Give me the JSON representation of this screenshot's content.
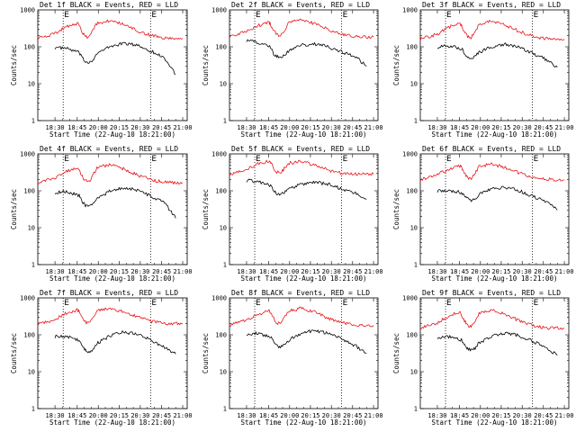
{
  "chart_data": [
    {
      "type": "line",
      "title": "Det 1f BLACK = Events, RED = LLD",
      "xlabel": "Start Time (22-Aug-10 18:21:00)",
      "ylabel": "Counts/sec",
      "ylim": [
        1,
        1000
      ],
      "yscale": "log",
      "xlim": [
        "18:21",
        "21:00"
      ],
      "xticks": [
        "18:30",
        "18:45",
        "20:00",
        "20:15",
        "20:30",
        "20:45",
        "21:00"
      ],
      "yticks": [
        "1",
        "10",
        "100",
        "1000"
      ],
      "markers": [
        "18:34",
        "20:38"
      ],
      "marker_labels": [
        "E",
        "E"
      ],
      "series": [
        {
          "color": "#000000",
          "x": [
            "18:30",
            "18:37",
            "18:52",
            "19:03",
            "19:14",
            "19:27",
            "19:41",
            "19:55",
            "20:08",
            "20:18",
            "20:28",
            "20:38",
            "20:47",
            "20:55"
          ],
          "values": [
            95,
            92,
            70,
            48,
            40,
            38,
            45,
            65,
            100,
            125,
            110,
            75,
            50,
            18
          ]
        },
        {
          "color": "#e8141a",
          "x": [
            "18:21",
            "18:30",
            "18:37",
            "18:45",
            "18:52",
            "19:03",
            "19:14",
            "19:27",
            "19:41",
            "19:55",
            "20:08",
            "20:18",
            "20:28",
            "20:38",
            "20:47",
            "20:55",
            "21:00"
          ],
          "values": [
            170,
            230,
            340,
            430,
            380,
            250,
            190,
            180,
            270,
            430,
            520,
            400,
            270,
            200,
            175,
            170,
            170
          ]
        }
      ]
    },
    {
      "type": "line",
      "title": "Det 2f BLACK = Events, RED = LLD",
      "xlabel": "Start Time (22-Aug-10 18:21:00)",
      "ylabel": "Counts/sec",
      "ylim": [
        1,
        1000
      ],
      "yscale": "log",
      "xlim": [
        "18:21",
        "21:00"
      ],
      "xticks": [
        "18:30",
        "18:45",
        "20:00",
        "20:15",
        "20:30",
        "20:45",
        "21:00"
      ],
      "yticks": [
        "1",
        "10",
        "100",
        "1000"
      ],
      "markers": [
        "18:34",
        "20:38"
      ],
      "marker_labels": [
        "E",
        "E"
      ],
      "series": [
        {
          "color": "#000000",
          "x": [
            "18:30",
            "18:37",
            "18:52",
            "19:03",
            "19:14",
            "19:27",
            "19:41",
            "19:55",
            "20:08",
            "20:18",
            "20:28",
            "20:38",
            "20:47",
            "20:55"
          ],
          "values": [
            150,
            135,
            95,
            65,
            55,
            50,
            58,
            75,
            110,
            120,
            100,
            70,
            55,
            30
          ]
        },
        {
          "color": "#e8141a",
          "x": [
            "18:21",
            "18:30",
            "18:37",
            "18:45",
            "18:52",
            "19:03",
            "19:14",
            "19:27",
            "19:41",
            "19:55",
            "20:08",
            "20:18",
            "20:28",
            "20:38",
            "20:47",
            "20:55",
            "21:00"
          ],
          "values": [
            190,
            260,
            360,
            470,
            400,
            280,
            210,
            195,
            280,
            450,
            540,
            420,
            290,
            215,
            190,
            185,
            185
          ]
        }
      ]
    },
    {
      "type": "line",
      "title": "Det 3f BLACK = Events, RED = LLD",
      "xlabel": "Start Time (22-Aug-10 18:21:00)",
      "ylabel": "Counts/sec",
      "ylim": [
        1,
        1000
      ],
      "yscale": "log",
      "xlim": [
        "18:21",
        "21:00"
      ],
      "xticks": [
        "18:30",
        "18:45",
        "20:00",
        "20:15",
        "20:30",
        "20:45",
        "21:00"
      ],
      "yticks": [
        "1",
        "10",
        "100",
        "1000"
      ],
      "markers": [
        "18:34",
        "20:38"
      ],
      "marker_labels": [
        "E",
        "E"
      ],
      "series": [
        {
          "color": "#000000",
          "x": [
            "18:30",
            "18:37",
            "18:52",
            "19:03",
            "19:14",
            "19:27",
            "19:41",
            "19:55",
            "20:08",
            "20:18",
            "20:28",
            "20:38",
            "20:47",
            "20:55"
          ],
          "values": [
            100,
            105,
            90,
            68,
            55,
            50,
            55,
            70,
            100,
            115,
            95,
            65,
            45,
            28
          ]
        },
        {
          "color": "#e8141a",
          "x": [
            "18:21",
            "18:30",
            "18:37",
            "18:45",
            "18:52",
            "19:03",
            "19:14",
            "19:27",
            "19:41",
            "19:55",
            "20:08",
            "20:18",
            "20:28",
            "20:38",
            "20:47",
            "20:55",
            "21:00"
          ],
          "values": [
            160,
            220,
            330,
            440,
            380,
            250,
            185,
            175,
            260,
            420,
            500,
            390,
            260,
            190,
            165,
            160,
            160
          ]
        }
      ]
    },
    {
      "type": "line",
      "title": "Det 4f BLACK = Events, RED = LLD",
      "xlabel": "Start Time (22-Aug-10 18:21:00)",
      "ylabel": "Counts/sec",
      "ylim": [
        1,
        1000
      ],
      "yscale": "log",
      "xlim": [
        "18:21",
        "21:00"
      ],
      "xticks": [
        "18:30",
        "18:45",
        "20:00",
        "20:15",
        "20:30",
        "20:45",
        "21:00"
      ],
      "yticks": [
        "1",
        "10",
        "100",
        "1000"
      ],
      "markers": [
        "18:34",
        "20:38"
      ],
      "marker_labels": [
        "E",
        "E"
      ],
      "series": [
        {
          "color": "#000000",
          "x": [
            "18:30",
            "18:37",
            "18:52",
            "19:03",
            "19:14",
            "19:27",
            "19:41",
            "19:55",
            "20:08",
            "20:18",
            "20:28",
            "20:38",
            "20:47",
            "20:55"
          ],
          "values": [
            90,
            95,
            75,
            50,
            40,
            36,
            42,
            60,
            95,
            120,
            105,
            70,
            48,
            18
          ]
        },
        {
          "color": "#e8141a",
          "x": [
            "18:21",
            "18:30",
            "18:37",
            "18:45",
            "18:52",
            "19:03",
            "19:14",
            "19:27",
            "19:41",
            "19:55",
            "20:08",
            "20:18",
            "20:28",
            "20:38",
            "20:47",
            "20:55",
            "21:00"
          ],
          "values": [
            165,
            225,
            330,
            420,
            370,
            245,
            185,
            175,
            265,
            420,
            510,
            395,
            265,
            195,
            170,
            165,
            165
          ]
        }
      ]
    },
    {
      "type": "line",
      "title": "Det 5f BLACK = Events, RED = LLD",
      "xlabel": "Start Time (22-Aug-10 18:21:00)",
      "ylabel": "Counts/sec",
      "ylim": [
        1,
        1000
      ],
      "yscale": "log",
      "xlim": [
        "18:21",
        "21:00"
      ],
      "xticks": [
        "18:30",
        "18:45",
        "20:00",
        "20:15",
        "20:30",
        "20:45",
        "21:00"
      ],
      "yticks": [
        "1",
        "10",
        "100",
        "1000"
      ],
      "markers": [
        "18:34",
        "20:38"
      ],
      "marker_labels": [
        "E",
        "E"
      ],
      "series": [
        {
          "color": "#000000",
          "x": [
            "18:30",
            "18:37",
            "18:52",
            "19:03",
            "19:14",
            "19:27",
            "19:41",
            "19:55",
            "20:08",
            "20:18",
            "20:28",
            "20:38",
            "20:47",
            "20:55"
          ],
          "values": [
            190,
            180,
            140,
            100,
            85,
            80,
            90,
            110,
            150,
            170,
            150,
            110,
            85,
            60
          ]
        },
        {
          "color": "#e8141a",
          "x": [
            "18:21",
            "18:30",
            "18:37",
            "18:45",
            "18:52",
            "19:03",
            "19:14",
            "19:27",
            "19:41",
            "19:55",
            "20:08",
            "20:18",
            "20:28",
            "20:38",
            "20:47",
            "20:55",
            "21:00"
          ],
          "values": [
            280,
            380,
            520,
            650,
            580,
            420,
            320,
            300,
            400,
            560,
            620,
            500,
            360,
            300,
            285,
            280,
            280
          ]
        }
      ]
    },
    {
      "type": "line",
      "title": "Det 6f BLACK = Events, RED = LLD",
      "xlabel": "Start Time (22-Aug-10 18:21:00)",
      "ylabel": "Counts/sec",
      "ylim": [
        1,
        1000
      ],
      "yscale": "log",
      "xlim": [
        "18:21",
        "21:00"
      ],
      "xticks": [
        "18:30",
        "18:45",
        "20:00",
        "20:15",
        "20:30",
        "20:45",
        "21:00"
      ],
      "yticks": [
        "1",
        "10",
        "100",
        "1000"
      ],
      "markers": [
        "18:34",
        "20:38"
      ],
      "marker_labels": [
        "E",
        "E"
      ],
      "series": [
        {
          "color": "#000000",
          "x": [
            "18:30",
            "18:37",
            "18:52",
            "19:03",
            "19:14",
            "19:27",
            "19:41",
            "19:55",
            "20:08",
            "20:18",
            "20:28",
            "20:38",
            "20:47",
            "20:55"
          ],
          "values": [
            100,
            105,
            90,
            72,
            60,
            55,
            62,
            80,
            110,
            125,
            100,
            70,
            50,
            30
          ]
        },
        {
          "color": "#e8141a",
          "x": [
            "18:21",
            "18:30",
            "18:37",
            "18:45",
            "18:52",
            "19:03",
            "19:14",
            "19:27",
            "19:41",
            "19:55",
            "20:08",
            "20:18",
            "20:28",
            "20:38",
            "20:47",
            "20:55",
            "21:00"
          ],
          "values": [
            200,
            270,
            380,
            480,
            430,
            300,
            230,
            215,
            300,
            450,
            530,
            420,
            300,
            230,
            205,
            200,
            200
          ]
        }
      ]
    },
    {
      "type": "line",
      "title": "Det 7f BLACK = Events, RED = LLD",
      "xlabel": "Start Time (22-Aug-10 18:21:00)",
      "ylabel": "Counts/sec",
      "ylim": [
        1,
        1000
      ],
      "yscale": "log",
      "xlim": [
        "18:21",
        "21:00"
      ],
      "xticks": [
        "18:30",
        "18:45",
        "20:00",
        "20:15",
        "20:30",
        "20:45",
        "21:00"
      ],
      "yticks": [
        "1",
        "10",
        "100",
        "1000"
      ],
      "markers": [
        "18:34",
        "20:38"
      ],
      "marker_labels": [
        "E",
        "E"
      ],
      "series": [
        {
          "color": "#000000",
          "x": [
            "18:30",
            "18:37",
            "18:52",
            "19:03",
            "19:14",
            "19:27",
            "19:41",
            "19:55",
            "20:08",
            "20:18",
            "20:28",
            "20:38",
            "20:47",
            "20:55"
          ],
          "values": [
            90,
            92,
            72,
            50,
            38,
            34,
            40,
            58,
            92,
            118,
            105,
            70,
            45,
            30
          ]
        },
        {
          "color": "#e8141a",
          "x": [
            "18:21",
            "18:30",
            "18:37",
            "18:45",
            "18:52",
            "19:03",
            "19:14",
            "19:27",
            "19:41",
            "19:55",
            "20:08",
            "20:18",
            "20:28",
            "20:38",
            "20:47",
            "20:55",
            "21:00"
          ],
          "values": [
            190,
            260,
            370,
            480,
            420,
            290,
            220,
            205,
            295,
            450,
            540,
            420,
            300,
            230,
            205,
            200,
            200
          ]
        }
      ]
    },
    {
      "type": "line",
      "title": "Det 8f BLACK = Events, RED = LLD",
      "xlabel": "Start Time (22-Aug-10 18:21:00)",
      "ylabel": "Counts/sec",
      "ylim": [
        1,
        1000
      ],
      "yscale": "log",
      "xlim": [
        "18:21",
        "21:00"
      ],
      "xticks": [
        "18:30",
        "18:45",
        "20:00",
        "20:15",
        "20:30",
        "20:45",
        "21:00"
      ],
      "yticks": [
        "1",
        "10",
        "100",
        "1000"
      ],
      "markers": [
        "18:34",
        "20:38"
      ],
      "marker_labels": [
        "E",
        "E"
      ],
      "series": [
        {
          "color": "#000000",
          "x": [
            "18:30",
            "18:37",
            "18:52",
            "19:03",
            "19:14",
            "19:27",
            "19:41",
            "19:55",
            "20:08",
            "20:18",
            "20:28",
            "20:38",
            "20:47",
            "20:55"
          ],
          "values": [
            105,
            110,
            90,
            62,
            50,
            46,
            52,
            70,
            110,
            130,
            110,
            75,
            50,
            32
          ]
        },
        {
          "color": "#e8141a",
          "x": [
            "18:21",
            "18:30",
            "18:37",
            "18:45",
            "18:52",
            "19:03",
            "19:14",
            "19:27",
            "19:41",
            "19:55",
            "20:08",
            "20:18",
            "20:28",
            "20:38",
            "20:47",
            "20:55",
            "21:00"
          ],
          "values": [
            180,
            250,
            350,
            450,
            400,
            280,
            210,
            200,
            290,
            440,
            520,
            410,
            280,
            210,
            185,
            180,
            180
          ]
        }
      ]
    },
    {
      "type": "line",
      "title": "Det 9f BLACK = Events, RED = LLD",
      "xlabel": "Start Time (22-Aug-10 18:21:00)",
      "ylabel": "Counts/sec",
      "ylim": [
        1,
        1000
      ],
      "yscale": "log",
      "xlim": [
        "18:21",
        "21:00"
      ],
      "xticks": [
        "18:30",
        "18:45",
        "20:00",
        "20:15",
        "20:30",
        "20:45",
        "21:00"
      ],
      "yticks": [
        "1",
        "10",
        "100",
        "1000"
      ],
      "markers": [
        "18:34",
        "20:38"
      ],
      "marker_labels": [
        "E",
        "E"
      ],
      "series": [
        {
          "color": "#000000",
          "x": [
            "18:30",
            "18:37",
            "18:52",
            "19:03",
            "19:14",
            "19:27",
            "19:41",
            "19:55",
            "20:08",
            "20:18",
            "20:28",
            "20:38",
            "20:47",
            "20:55"
          ],
          "values": [
            85,
            90,
            72,
            52,
            42,
            38,
            44,
            60,
            92,
            112,
            95,
            65,
            45,
            28
          ]
        },
        {
          "color": "#e8141a",
          "x": [
            "18:21",
            "18:30",
            "18:37",
            "18:45",
            "18:52",
            "19:03",
            "19:14",
            "19:27",
            "19:41",
            "19:55",
            "20:08",
            "20:18",
            "20:28",
            "20:38",
            "20:47",
            "20:55",
            "21:00"
          ],
          "values": [
            150,
            210,
            310,
            420,
            360,
            240,
            180,
            170,
            250,
            390,
            470,
            360,
            240,
            175,
            155,
            150,
            150
          ]
        }
      ]
    }
  ]
}
